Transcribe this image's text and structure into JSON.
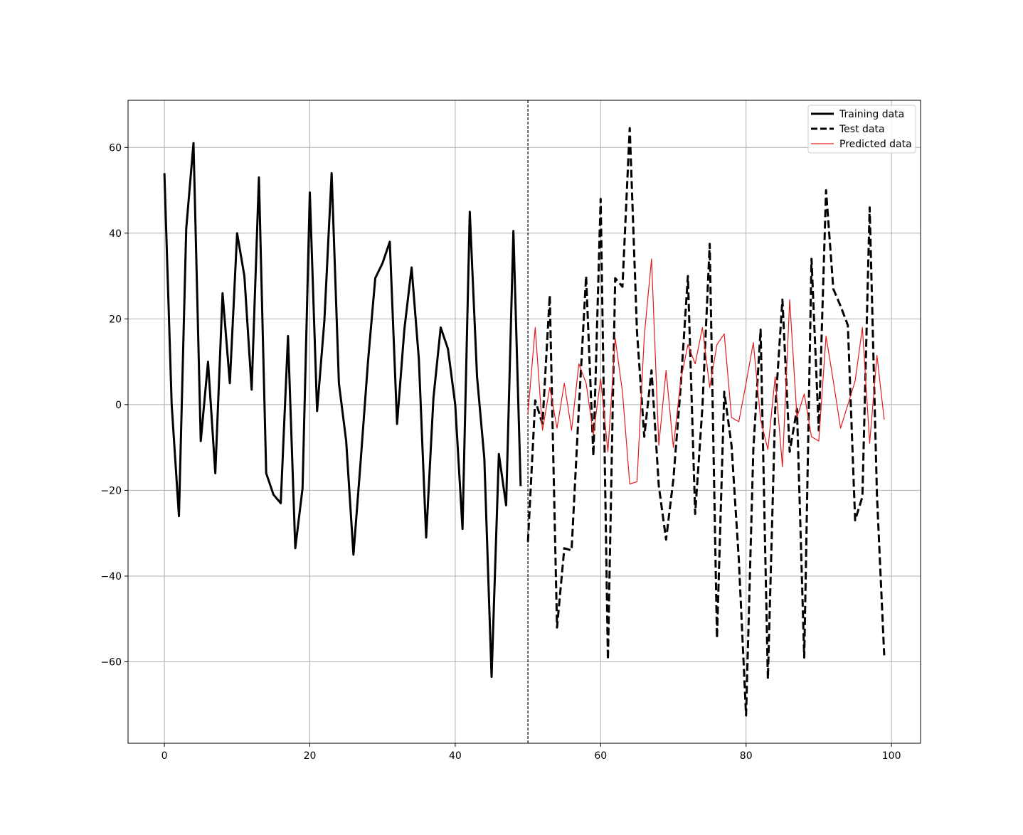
{
  "chart_data": {
    "type": "line",
    "title": "",
    "xlabel": "",
    "ylabel": "",
    "xlim": [
      -5,
      104
    ],
    "ylim": [
      -79,
      71
    ],
    "xticks": [
      0,
      20,
      40,
      60,
      80,
      100
    ],
    "yticks": [
      -60,
      -40,
      -20,
      0,
      20,
      40,
      60
    ],
    "xtick_labels": [
      "0",
      "20",
      "40",
      "60",
      "80",
      "100"
    ],
    "ytick_labels": [
      "−60",
      "−40",
      "−20",
      "0",
      "20",
      "40",
      "60"
    ],
    "grid": true,
    "legend_position": "top-right",
    "split_line_x": 50,
    "series": [
      {
        "name": "Training data",
        "style": "solid",
        "color": "#000000",
        "x_start": 0,
        "values": [
          54,
          0,
          -26,
          41,
          61,
          -8.5,
          10,
          -16,
          26,
          5,
          40,
          30,
          3.5,
          53,
          -16,
          -21,
          -23,
          16,
          -33.5,
          -19.5,
          49.5,
          -1.5,
          19.5,
          54,
          5,
          -8.5,
          -35,
          -13,
          10,
          29.5,
          33,
          38,
          -4.5,
          17.5,
          32,
          10.5,
          -31,
          1.5,
          18,
          13,
          0,
          -29,
          45,
          6.5,
          -12.5,
          -63.5,
          -11.5,
          -23.5,
          40.5,
          -19
        ]
      },
      {
        "name": "Test data",
        "style": "dashed",
        "color": "#000000",
        "x_start": 50,
        "values": [
          -32,
          1,
          -4.5,
          25.5,
          -52,
          -33.5,
          -34,
          -1,
          30,
          -12,
          48,
          -59.5,
          29.5,
          27.5,
          64.5,
          17,
          -7.5,
          8,
          -19,
          -31.5,
          -17.5,
          4,
          30,
          -25.5,
          -0.5,
          37.5,
          -54.5,
          3,
          -9.5,
          -36,
          -72.5,
          -10.5,
          17.5,
          -64,
          -1.5,
          24.5,
          -11,
          -1,
          -59,
          34,
          -6,
          50,
          27,
          23,
          18.5,
          -27,
          -21.5,
          46,
          -21,
          -58.5
        ]
      },
      {
        "name": "Predicted data",
        "style": "solid-thin",
        "color": "#e31a1c",
        "x_start": 50,
        "values": [
          -2,
          18,
          -6,
          4,
          -5.5,
          5,
          -6,
          9.5,
          5,
          -7,
          6,
          -11,
          15.5,
          3,
          -18.5,
          -18,
          16,
          34,
          -9.5,
          8,
          -10,
          5.5,
          14,
          9.5,
          18,
          4,
          14,
          16.5,
          -3,
          -4,
          5,
          14.5,
          -3.5,
          -10.5,
          6.5,
          -14.5,
          24.5,
          -3,
          2.5,
          -7.5,
          -8.5,
          16,
          5.5,
          -5.5,
          0,
          5.5,
          18,
          -9,
          11.5,
          -3.5
        ]
      }
    ]
  }
}
